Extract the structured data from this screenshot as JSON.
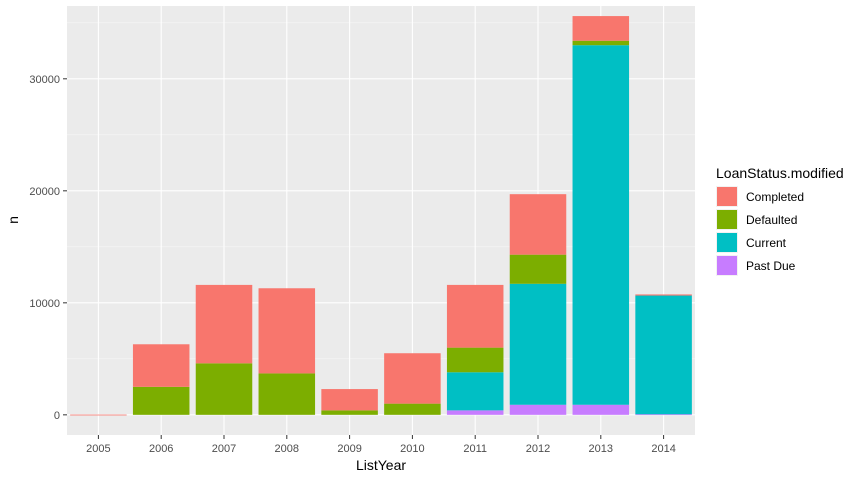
{
  "chart_data": {
    "type": "bar",
    "stacked": true,
    "title": "",
    "xlabel": "ListYear",
    "ylabel": "n",
    "ylim": [
      -1800,
      36500
    ],
    "yticks": [
      0,
      10000,
      20000,
      30000
    ],
    "ytick_labels": [
      "0",
      "10000",
      "20000",
      "30000"
    ],
    "grid": true,
    "legend_position": "right",
    "legend_title": "LoanStatus.modified",
    "categories": [
      "2005",
      "2006",
      "2007",
      "2008",
      "2009",
      "2010",
      "2011",
      "2012",
      "2013",
      "2014"
    ],
    "stack_order": [
      "Past Due",
      "Current",
      "Defaulted",
      "Completed"
    ],
    "series": [
      {
        "name": "Completed",
        "color": "#F8766D",
        "values": [
          20,
          3800,
          7000,
          7600,
          1900,
          4500,
          5600,
          5400,
          2200,
          100
        ]
      },
      {
        "name": "Defaulted",
        "color": "#7CAE00",
        "values": [
          0,
          2500,
          4600,
          3700,
          400,
          1000,
          2200,
          2600,
          400,
          0
        ]
      },
      {
        "name": "Current",
        "color": "#00BFC4",
        "values": [
          0,
          0,
          0,
          0,
          0,
          0,
          3400,
          10800,
          32100,
          10600
        ]
      },
      {
        "name": "Past Due",
        "color": "#C77CFF",
        "values": [
          0,
          0,
          0,
          0,
          0,
          0,
          400,
          900,
          900,
          50
        ]
      }
    ]
  }
}
